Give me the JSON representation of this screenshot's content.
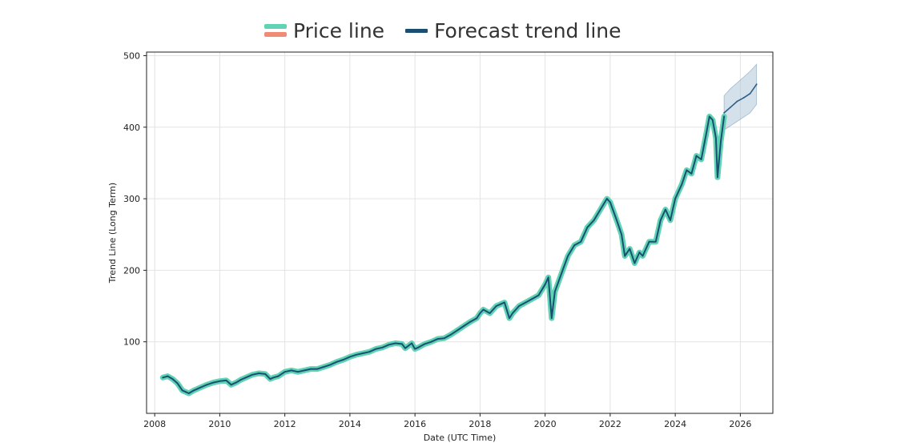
{
  "legend": {
    "price_label": "Price line",
    "forecast_label": "Forecast trend line"
  },
  "colors": {
    "price": "#5fd3b4",
    "price_alt": "#f08b76",
    "trend": "#1b4f72",
    "forecast": "#2c5f8a",
    "band": "#a9c1d6"
  },
  "chart_data": {
    "type": "line",
    "title": "",
    "xlabel": "Date (UTC Time)",
    "ylabel": "Trend Line (Long Term)",
    "xlim": [
      2007.75,
      2027.0
    ],
    "ylim": [
      0,
      505
    ],
    "xticks": [
      2008,
      2010,
      2012,
      2014,
      2016,
      2018,
      2020,
      2022,
      2024,
      2026
    ],
    "yticks": [
      100,
      200,
      300,
      400,
      500
    ],
    "grid": true,
    "legend_position": "top-center",
    "series": [
      {
        "name": "Price line",
        "x": [
          2008.25,
          2008.4,
          2008.55,
          2008.7,
          2008.85,
          2008.95,
          2009.05,
          2009.2,
          2009.4,
          2009.6,
          2009.8,
          2010.0,
          2010.2,
          2010.35,
          2010.5,
          2010.65,
          2010.8,
          2011.0,
          2011.2,
          2011.4,
          2011.55,
          2011.65,
          2011.8,
          2012.0,
          2012.2,
          2012.4,
          2012.6,
          2012.8,
          2013.0,
          2013.2,
          2013.4,
          2013.6,
          2013.8,
          2014.0,
          2014.2,
          2014.4,
          2014.6,
          2014.8,
          2015.0,
          2015.2,
          2015.4,
          2015.6,
          2015.7,
          2015.9,
          2016.0,
          2016.1,
          2016.3,
          2016.5,
          2016.7,
          2016.9,
          2017.1,
          2017.3,
          2017.5,
          2017.7,
          2017.9,
          2018.0,
          2018.1,
          2018.3,
          2018.5,
          2018.75,
          2018.9,
          2019.0,
          2019.2,
          2019.4,
          2019.6,
          2019.8,
          2020.0,
          2020.1,
          2020.2,
          2020.3,
          2020.5,
          2020.7,
          2020.9,
          2021.1,
          2021.3,
          2021.5,
          2021.7,
          2021.9,
          2022.0,
          2022.2,
          2022.35,
          2022.45,
          2022.6,
          2022.75,
          2022.9,
          2023.0,
          2023.2,
          2023.4,
          2023.55,
          2023.7,
          2023.85,
          2024.0,
          2024.2,
          2024.35,
          2024.5,
          2024.65,
          2024.8,
          2024.95,
          2025.05,
          2025.15,
          2025.25,
          2025.3,
          2025.4,
          2025.5
        ],
        "y": [
          50,
          52,
          48,
          42,
          32,
          30,
          28,
          32,
          36,
          40,
          43,
          45,
          46,
          40,
          43,
          47,
          50,
          54,
          56,
          55,
          48,
          50,
          52,
          58,
          60,
          58,
          60,
          62,
          62,
          65,
          68,
          72,
          75,
          79,
          82,
          84,
          86,
          90,
          92,
          96,
          98,
          97,
          91,
          98,
          90,
          92,
          97,
          100,
          104,
          105,
          110,
          116,
          122,
          128,
          133,
          140,
          145,
          140,
          150,
          155,
          133,
          140,
          150,
          155,
          160,
          165,
          180,
          190,
          133,
          170,
          195,
          220,
          235,
          240,
          260,
          270,
          285,
          300,
          295,
          270,
          250,
          220,
          230,
          210,
          225,
          220,
          240,
          240,
          270,
          285,
          270,
          300,
          320,
          340,
          335,
          360,
          355,
          390,
          415,
          410,
          385,
          330,
          380,
          415
        ]
      },
      {
        "name": "Forecast trend line",
        "x": [
          2025.5,
          2025.7,
          2025.9,
          2026.1,
          2026.3,
          2026.5
        ],
        "y": [
          420,
          428,
          436,
          441,
          447,
          460
        ],
        "lower": [
          396,
          402,
          408,
          414,
          420,
          432
        ],
        "upper": [
          444,
          454,
          462,
          470,
          478,
          488
        ]
      }
    ]
  }
}
